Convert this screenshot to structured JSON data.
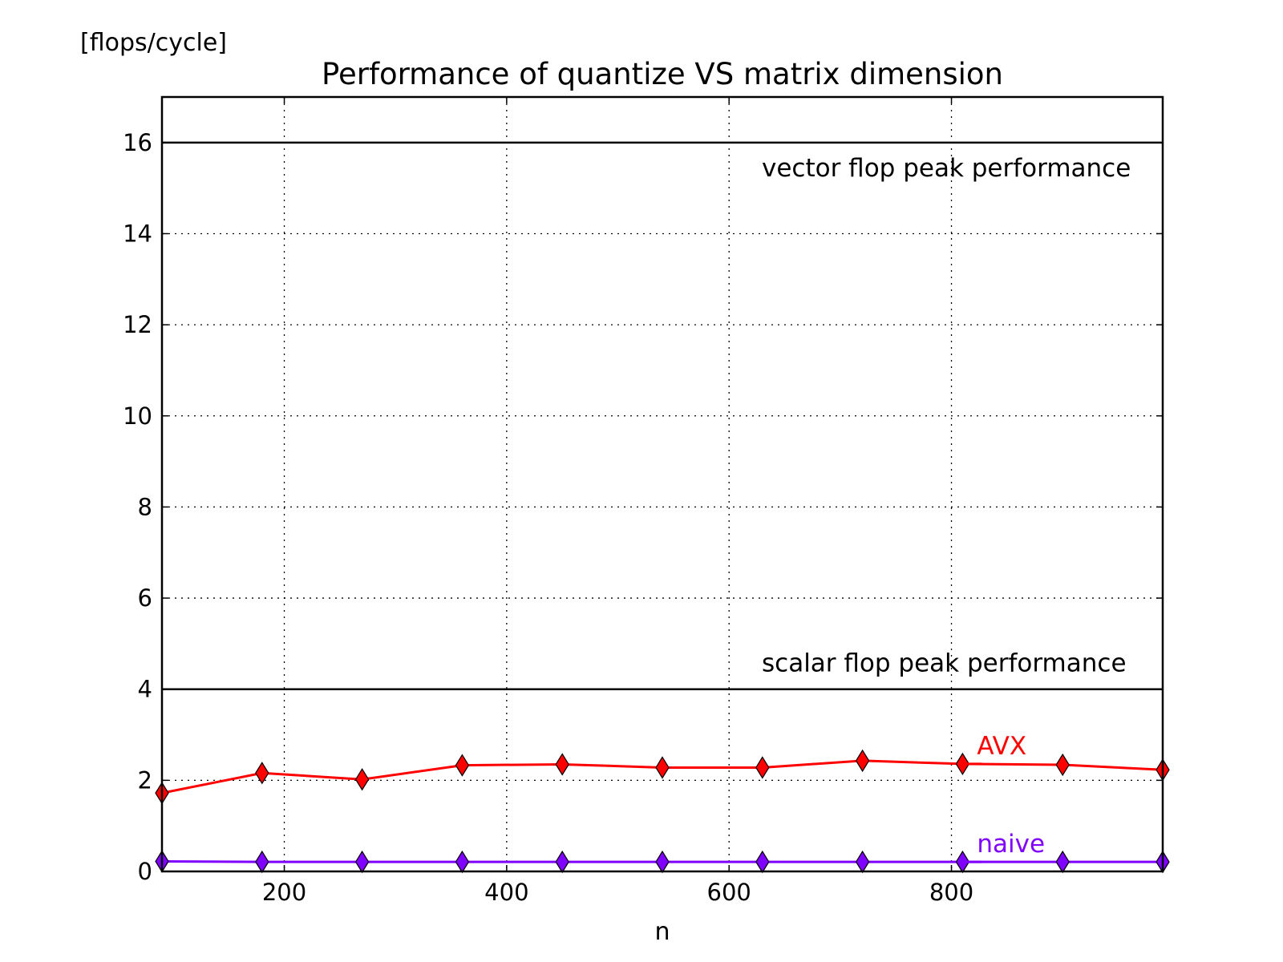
{
  "chart_data": {
    "type": "line",
    "title": "Performance of quantize VS matrix dimension",
    "xlabel": "n",
    "ylabel": "[flops/cycle]",
    "xlim": [
      90,
      990
    ],
    "ylim": [
      0,
      17
    ],
    "x_ticks": [
      200,
      400,
      600,
      800
    ],
    "y_ticks": [
      0,
      2,
      4,
      6,
      8,
      10,
      12,
      14,
      16
    ],
    "grid": true,
    "x": [
      90,
      180,
      270,
      360,
      450,
      540,
      630,
      720,
      810,
      900,
      990
    ],
    "series": [
      {
        "name": "AVX",
        "color": "#ff0000",
        "values": [
          1.72,
          2.16,
          2.02,
          2.33,
          2.35,
          2.28,
          2.28,
          2.43,
          2.36,
          2.34,
          2.23
        ]
      },
      {
        "name": "naive",
        "color": "#8000ff",
        "values": [
          0.22,
          0.21,
          0.21,
          0.21,
          0.21,
          0.21,
          0.21,
          0.21,
          0.21,
          0.21,
          0.21
        ]
      }
    ],
    "reference_lines": [
      {
        "y": 16,
        "label": "vector flop peak performance"
      },
      {
        "y": 4,
        "label": "scalar flop peak performance"
      }
    ]
  }
}
